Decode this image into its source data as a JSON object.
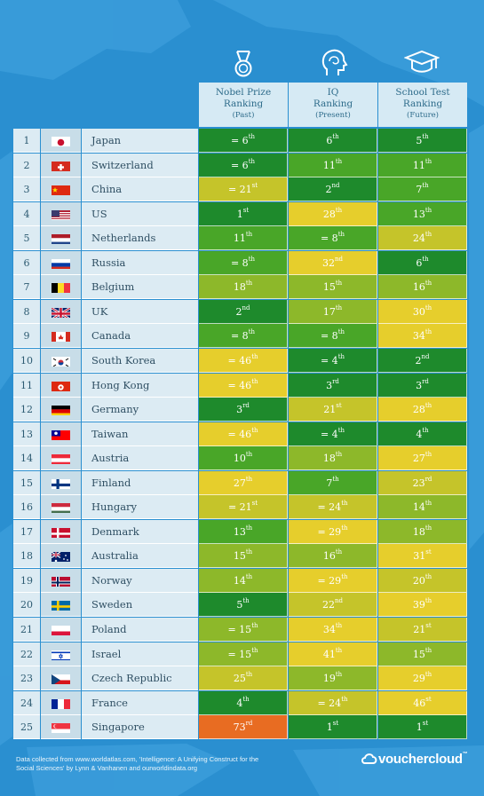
{
  "chart_data": {
    "type": "table",
    "columns": [
      {
        "key": "nobel",
        "title": "Nobel Prize",
        "sub": "Ranking",
        "time": "(Past)",
        "icon": "medal-icon"
      },
      {
        "key": "iq",
        "title": "IQ",
        "sub": "Ranking",
        "time": "(Present)",
        "icon": "brain-head-icon"
      },
      {
        "key": "school",
        "title": "School Test",
        "sub": "Ranking",
        "time": "(Future)",
        "icon": "graduation-cap-icon"
      }
    ],
    "rows": [
      {
        "rank": "1",
        "country": "Japan",
        "flag": "jp",
        "cells": [
          [
            "= 6",
            "th"
          ],
          [
            "6",
            "th"
          ],
          [
            "5",
            "th"
          ]
        ]
      },
      {
        "rank": "2",
        "country": "Switzerland",
        "flag": "ch",
        "cells": [
          [
            "= 6",
            "th"
          ],
          [
            "11",
            "th"
          ],
          [
            "11",
            "th"
          ]
        ]
      },
      {
        "rank": "3",
        "country": "China",
        "flag": "cn",
        "cells": [
          [
            "= 21",
            "st"
          ],
          [
            "2",
            "nd"
          ],
          [
            "7",
            "th"
          ]
        ]
      },
      {
        "rank": "4",
        "country": "US",
        "flag": "us",
        "cells": [
          [
            "1",
            "st"
          ],
          [
            "28",
            "th"
          ],
          [
            "13",
            "th"
          ]
        ]
      },
      {
        "rank": "5",
        "country": "Netherlands",
        "flag": "nl",
        "cells": [
          [
            "11",
            "th"
          ],
          [
            "= 8",
            "th"
          ],
          [
            "24",
            "th"
          ]
        ]
      },
      {
        "rank": "6",
        "country": "Russia",
        "flag": "ru",
        "cells": [
          [
            "= 8",
            "th"
          ],
          [
            "32",
            "nd"
          ],
          [
            "6",
            "th"
          ]
        ]
      },
      {
        "rank": "7",
        "country": "Belgium",
        "flag": "be",
        "cells": [
          [
            "18",
            "th"
          ],
          [
            "15",
            "th"
          ],
          [
            "16",
            "th"
          ]
        ]
      },
      {
        "rank": "8",
        "country": "UK",
        "flag": "uk",
        "cells": [
          [
            "2",
            "nd"
          ],
          [
            "17",
            "th"
          ],
          [
            "30",
            "th"
          ]
        ]
      },
      {
        "rank": "9",
        "country": "Canada",
        "flag": "ca",
        "cells": [
          [
            "= 8",
            "th"
          ],
          [
            "= 8",
            "th"
          ],
          [
            "34",
            "th"
          ]
        ]
      },
      {
        "rank": "10",
        "country": "South Korea",
        "flag": "kr",
        "cells": [
          [
            "= 46",
            "th"
          ],
          [
            "= 4",
            "th"
          ],
          [
            "2",
            "nd"
          ]
        ]
      },
      {
        "rank": "11",
        "country": "Hong Kong",
        "flag": "hk",
        "cells": [
          [
            "= 46",
            "th"
          ],
          [
            "3",
            "rd"
          ],
          [
            "3",
            "rd"
          ]
        ]
      },
      {
        "rank": "12",
        "country": "Germany",
        "flag": "de",
        "cells": [
          [
            "3",
            "rd"
          ],
          [
            "21",
            "st"
          ],
          [
            "28",
            "th"
          ]
        ]
      },
      {
        "rank": "13",
        "country": "Taiwan",
        "flag": "tw",
        "cells": [
          [
            "= 46",
            "th"
          ],
          [
            "= 4",
            "th"
          ],
          [
            "4",
            "th"
          ]
        ]
      },
      {
        "rank": "14",
        "country": "Austria",
        "flag": "at",
        "cells": [
          [
            "10",
            "th"
          ],
          [
            "18",
            "th"
          ],
          [
            "27",
            "th"
          ]
        ]
      },
      {
        "rank": "15",
        "country": "Finland",
        "flag": "fi",
        "cells": [
          [
            "27",
            "th"
          ],
          [
            "7",
            "th"
          ],
          [
            "23",
            "rd"
          ]
        ]
      },
      {
        "rank": "16",
        "country": "Hungary",
        "flag": "hu",
        "cells": [
          [
            "= 21",
            "st"
          ],
          [
            "= 24",
            "th"
          ],
          [
            "14",
            "th"
          ]
        ]
      },
      {
        "rank": "17",
        "country": "Denmark",
        "flag": "dk",
        "cells": [
          [
            "13",
            "th"
          ],
          [
            "= 29",
            "th"
          ],
          [
            "18",
            "th"
          ]
        ]
      },
      {
        "rank": "18",
        "country": "Australia",
        "flag": "au",
        "cells": [
          [
            "15",
            "th"
          ],
          [
            "16",
            "th"
          ],
          [
            "31",
            "st"
          ]
        ]
      },
      {
        "rank": "19",
        "country": "Norway",
        "flag": "no",
        "cells": [
          [
            "14",
            "th"
          ],
          [
            "= 29",
            "th"
          ],
          [
            "20",
            "th"
          ]
        ]
      },
      {
        "rank": "20",
        "country": "Sweden",
        "flag": "se",
        "cells": [
          [
            "5",
            "th"
          ],
          [
            "22",
            "nd"
          ],
          [
            "39",
            "th"
          ]
        ]
      },
      {
        "rank": "21",
        "country": "Poland",
        "flag": "pl",
        "cells": [
          [
            "= 15",
            "th"
          ],
          [
            "34",
            "th"
          ],
          [
            "21",
            "st"
          ]
        ]
      },
      {
        "rank": "22",
        "country": "Israel",
        "flag": "il",
        "cells": [
          [
            "= 15",
            "th"
          ],
          [
            "41",
            "th"
          ],
          [
            "15",
            "th"
          ]
        ]
      },
      {
        "rank": "23",
        "country": "Czech Republic",
        "flag": "cz",
        "cells": [
          [
            "25",
            "th"
          ],
          [
            "19",
            "th"
          ],
          [
            "29",
            "th"
          ]
        ]
      },
      {
        "rank": "24",
        "country": "France",
        "flag": "fr",
        "cells": [
          [
            "4",
            "th"
          ],
          [
            "= 24",
            "th"
          ],
          [
            "46",
            "st"
          ]
        ]
      },
      {
        "rank": "25",
        "country": "Singapore",
        "flag": "sg",
        "cells": [
          [
            "73",
            "rd"
          ],
          [
            "1",
            "st"
          ],
          [
            "1",
            "st"
          ]
        ]
      }
    ],
    "color_scale": [
      "#1e8a2c",
      "#49a628",
      "#8db82a",
      "#c5c42a",
      "#e6ce2c",
      "#e86c22"
    ]
  },
  "footer": {
    "source_line1": "Data collected from www.worldatlas.com, 'Intelligence: A Unifying Construct for the",
    "source_line2": "Social Sciences' by Lynn & Vanhanen and ourworldindata.org",
    "brand": "vouchercloud",
    "brand_mark": "™"
  },
  "colors": {
    "background": "#2a8fd0",
    "map_land": "#3c9fdc"
  }
}
